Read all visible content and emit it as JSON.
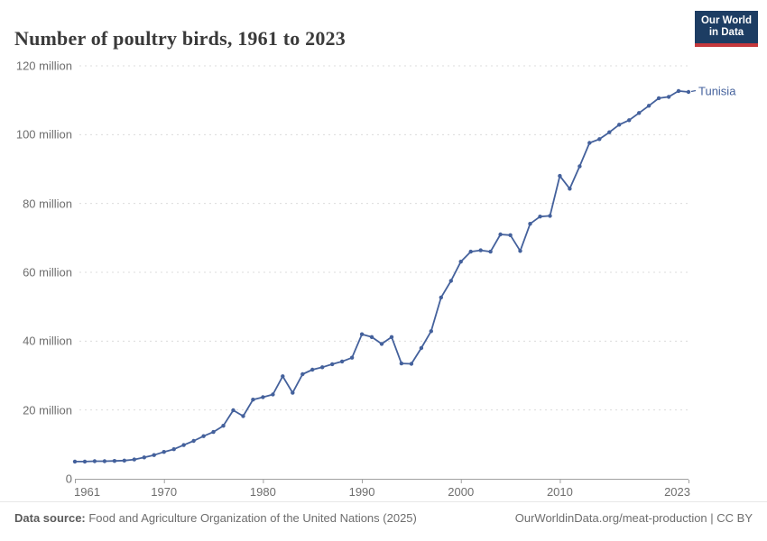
{
  "header": {
    "title": "Number of poultry birds, 1961 to 2023",
    "logo": {
      "line1": "Our World",
      "line2": "in Data",
      "bg_color": "#1d3d63",
      "stripe_color": "#c5383c"
    }
  },
  "chart_data": {
    "type": "line",
    "title": "Number of poultry birds, 1961 to 2023",
    "unit": "million birds",
    "xlim": [
      1961,
      2023
    ],
    "ylim": [
      0,
      120
    ],
    "grid": "horizontal-dashed",
    "legend_position": "end-of-line-label",
    "x_ticks": [
      1961,
      1970,
      1980,
      1990,
      2000,
      2010,
      2023
    ],
    "y_ticks": [
      {
        "value": 0,
        "label": "0"
      },
      {
        "value": 20,
        "label": "20 million"
      },
      {
        "value": 40,
        "label": "40 million"
      },
      {
        "value": 60,
        "label": "60 million"
      },
      {
        "value": 80,
        "label": "80 million"
      },
      {
        "value": 100,
        "label": "100 million"
      },
      {
        "value": 120,
        "label": "120 million"
      }
    ],
    "series": [
      {
        "name": "Tunisia",
        "color": "#44619c",
        "x": [
          1961,
          1962,
          1963,
          1964,
          1965,
          1966,
          1967,
          1968,
          1969,
          1970,
          1971,
          1972,
          1973,
          1974,
          1975,
          1976,
          1977,
          1978,
          1979,
          1980,
          1981,
          1982,
          1983,
          1984,
          1985,
          1986,
          1987,
          1988,
          1989,
          1990,
          1991,
          1992,
          1993,
          1994,
          1995,
          1996,
          1997,
          1998,
          1999,
          2000,
          2001,
          2002,
          2003,
          2004,
          2005,
          2006,
          2007,
          2008,
          2009,
          2010,
          2011,
          2012,
          2013,
          2014,
          2015,
          2016,
          2017,
          2018,
          2019,
          2020,
          2021,
          2022,
          2023
        ],
        "values": [
          5.0,
          5.0,
          5.1,
          5.1,
          5.2,
          5.3,
          5.6,
          6.2,
          6.9,
          7.8,
          8.6,
          9.8,
          11.0,
          12.4,
          13.6,
          15.4,
          19.9,
          18.2,
          23.0,
          23.7,
          24.5,
          29.8,
          25.0,
          30.4,
          31.7,
          32.4,
          33.3,
          34.1,
          35.2,
          42.0,
          41.2,
          39.2,
          41.2,
          33.5,
          33.4,
          38.0,
          42.9,
          52.7,
          57.5,
          63.1,
          66.0,
          66.4,
          66.0,
          71.0,
          70.8,
          66.2,
          74.1,
          76.2,
          76.4,
          88.0,
          84.3,
          90.8,
          97.6,
          98.7,
          100.7,
          102.9,
          104.2,
          106.3,
          108.4,
          110.6,
          111.0,
          112.7,
          112.4
        ]
      }
    ]
  },
  "style_colors": {
    "gridline": "#dcdcdc",
    "axis": "#a0a0a0",
    "tick_label": "#6e6e6e"
  },
  "footer": {
    "source_label": "Data source:",
    "source_text": " Food and Agriculture Organization of the United Nations (2025)",
    "link_text": "OurWorldinData.org/meat-production | CC BY"
  }
}
